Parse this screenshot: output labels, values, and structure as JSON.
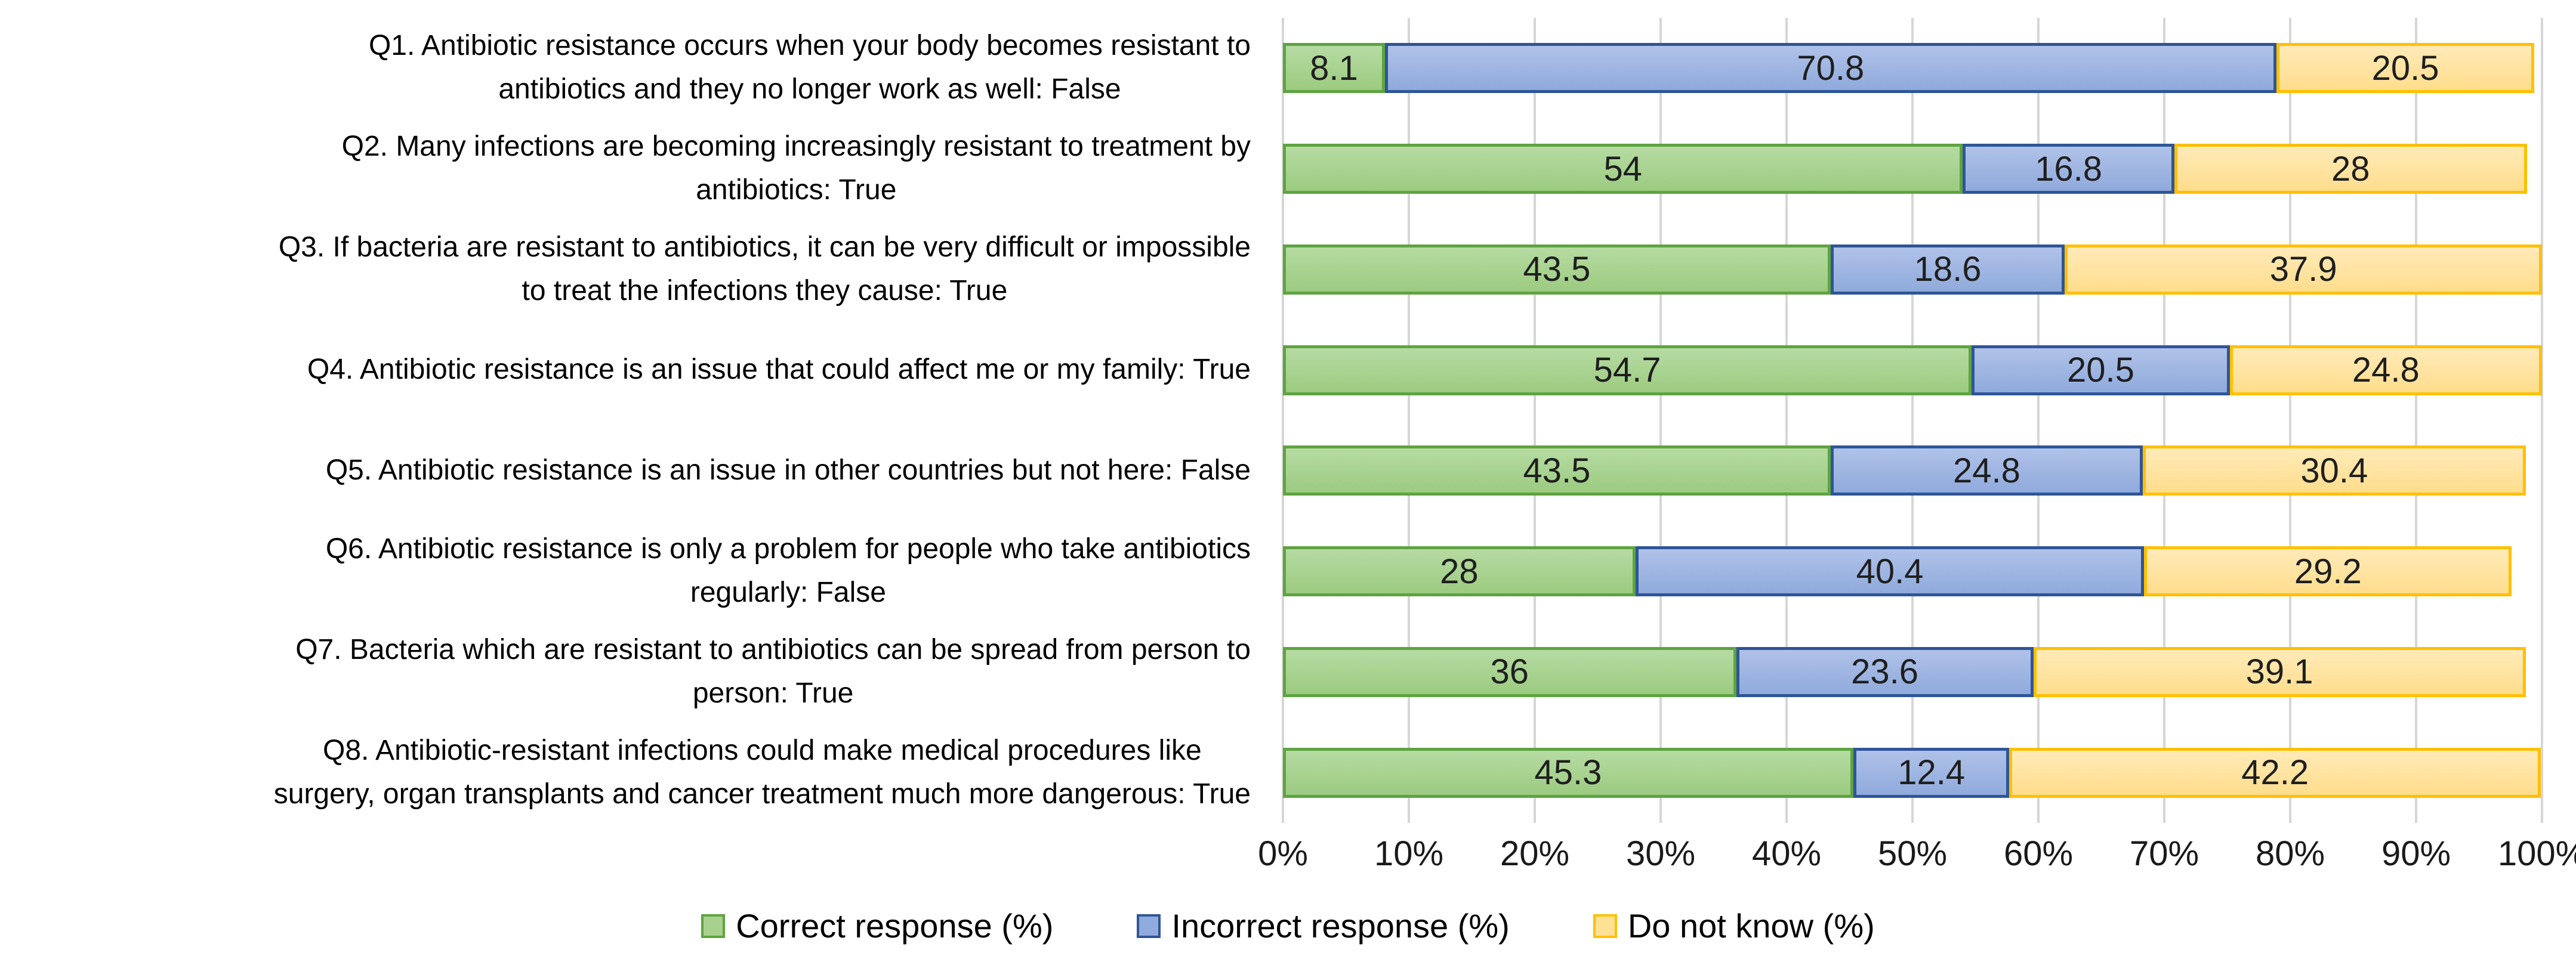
{
  "chart_data": {
    "type": "bar",
    "orientation": "horizontal-stacked",
    "title": "",
    "xlabel": "",
    "ylabel": "",
    "xlim": [
      0,
      100
    ],
    "x_ticks": [
      "0%",
      "10%",
      "20%",
      "30%",
      "40%",
      "50%",
      "60%",
      "70%",
      "80%",
      "90%",
      "100%"
    ],
    "grid": "vertical-only",
    "gridline_color": "#d6d6d6",
    "legend_position": "bottom-center",
    "categories": [
      "Q1. Antibiotic resistance occurs when your body becomes resistant to\nantibiotics and they no longer work as well: False",
      "Q2. Many infections are becoming increasingly resistant to treatment by\nantibiotics: True",
      "Q3. If bacteria are resistant to antibiotics, it can be very difficult or impossible\nto treat the infections they cause: True",
      "Q4. Antibiotic resistance is an issue that could affect me or my family: True",
      "Q5. Antibiotic resistance is an issue in other countries but not here: False",
      "Q6. Antibiotic resistance is only a problem for people who take antibiotics\nregularly: False",
      "Q7. Bacteria which are resistant to antibiotics can be spread from person to\nperson: True",
      "Q8. Antibiotic-resistant infections could make medical procedures like\nsurgery, organ transplants and cancer treatment much more dangerous: True"
    ],
    "series": [
      {
        "name": "Correct response (%)",
        "key": "correct",
        "fill_color": "#a9d18e",
        "border_color": "#5ea440",
        "values": [
          8.1,
          54,
          43.5,
          54.7,
          43.5,
          28,
          36,
          45.3
        ]
      },
      {
        "name": "Incorrect response (%)",
        "key": "incorrect",
        "fill_color": "#8faadc",
        "border_color": "#2f5597",
        "values": [
          70.8,
          16.8,
          18.6,
          20.5,
          24.8,
          40.4,
          23.6,
          12.4
        ]
      },
      {
        "name": "Do not know (%)",
        "key": "donotknow",
        "fill_color": "#ffe195",
        "border_color": "#ffc000",
        "values": [
          20.5,
          28,
          37.9,
          24.8,
          30.4,
          29.2,
          39.1,
          42.2
        ]
      }
    ]
  }
}
